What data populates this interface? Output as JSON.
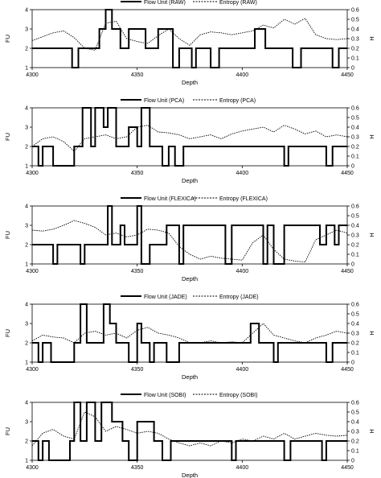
{
  "chart_data": [
    {
      "type": "line",
      "title": "",
      "legend": {
        "position": "top",
        "entries": [
          "Flow Unit (RAW)",
          "Entropy (RAW)"
        ]
      },
      "xlabel": "Depth",
      "ylabel": "FU",
      "y2label": "H",
      "xlim": [
        4300,
        4450
      ],
      "ylim": [
        1,
        4
      ],
      "y2lim": [
        0,
        0.6
      ],
      "xticks": [
        "4300",
        "4350",
        "4400",
        "4450"
      ],
      "yticks": [
        "1",
        "2",
        "3",
        "4"
      ],
      "y2ticks": [
        "0",
        "0.1",
        "0.2",
        "0.3",
        "0.4",
        "0.5",
        "0.6"
      ],
      "grid": false,
      "series": [
        {
          "name": "Flow Unit (RAW)",
          "axis": "left",
          "style": "solid",
          "x": [
            4300,
            4319,
            4319,
            4322,
            4322,
            4332,
            4332,
            4335,
            4335,
            4338,
            4338,
            4342,
            4342,
            4346,
            4346,
            4354,
            4354,
            4360,
            4360,
            4367,
            4367,
            4370,
            4370,
            4376,
            4376,
            4378,
            4378,
            4385,
            4385,
            4389,
            4389,
            4406,
            4406,
            4411,
            4411,
            4424,
            4424,
            4428,
            4428,
            4443,
            4443,
            4446,
            4446,
            4450
          ],
          "y": [
            2,
            2,
            1,
            1,
            2,
            2,
            3,
            3,
            4,
            4,
            3,
            3,
            2,
            2,
            3,
            3,
            2,
            2,
            3,
            3,
            1,
            1,
            2,
            2,
            1,
            1,
            2,
            2,
            1,
            1,
            2,
            2,
            3,
            3,
            2,
            2,
            1,
            1,
            2,
            2,
            1,
            1,
            2,
            2
          ]
        },
        {
          "name": "Entropy (RAW)",
          "axis": "right",
          "style": "dotted",
          "x": [
            4300,
            4305,
            4310,
            4315,
            4320,
            4325,
            4330,
            4335,
            4340,
            4345,
            4350,
            4355,
            4360,
            4365,
            4370,
            4375,
            4380,
            4385,
            4390,
            4395,
            4400,
            4405,
            4410,
            4415,
            4420,
            4425,
            4430,
            4435,
            4440,
            4445,
            4450
          ],
          "y": [
            0.28,
            0.32,
            0.36,
            0.38,
            0.31,
            0.2,
            0.18,
            0.46,
            0.48,
            0.3,
            0.27,
            0.25,
            0.33,
            0.4,
            0.3,
            0.23,
            0.34,
            0.37,
            0.36,
            0.34,
            0.36,
            0.38,
            0.44,
            0.41,
            0.5,
            0.45,
            0.51,
            0.34,
            0.3,
            0.29,
            0.3
          ]
        }
      ]
    },
    {
      "type": "line",
      "title": "",
      "legend": {
        "position": "top",
        "entries": [
          "Flow Unit (PCA)",
          "Entropy (PCA)"
        ]
      },
      "xlabel": "Depth",
      "ylabel": "FU",
      "y2label": "H",
      "xlim": [
        4300,
        4450
      ],
      "ylim": [
        1,
        4
      ],
      "y2lim": [
        0,
        0.6
      ],
      "xticks": [
        "4300",
        "4350",
        "4400",
        "4450"
      ],
      "yticks": [
        "1",
        "2",
        "3",
        "4"
      ],
      "y2ticks": [
        "0",
        "0.1",
        "0.2",
        "0.3",
        "0.4",
        "0.5",
        "0.6"
      ],
      "grid": false,
      "series": [
        {
          "name": "Flow Unit (PCA)",
          "axis": "left",
          "style": "solid",
          "x": [
            4300,
            4303,
            4303,
            4305,
            4305,
            4310,
            4310,
            4320,
            4320,
            4324,
            4324,
            4328,
            4328,
            4330,
            4330,
            4334,
            4334,
            4336,
            4336,
            4340,
            4340,
            4346,
            4346,
            4350,
            4350,
            4352,
            4352,
            4356,
            4356,
            4362,
            4362,
            4365,
            4365,
            4368,
            4368,
            4372,
            4372,
            4420,
            4420,
            4422,
            4422,
            4440,
            4440,
            4443,
            4443,
            4450
          ],
          "y": [
            2,
            2,
            1,
            1,
            2,
            2,
            1,
            1,
            2,
            2,
            4,
            4,
            2,
            2,
            4,
            4,
            3,
            3,
            4,
            4,
            2,
            2,
            3,
            3,
            2,
            2,
            4,
            4,
            2,
            2,
            1,
            1,
            2,
            2,
            1,
            1,
            2,
            2,
            1,
            1,
            2,
            2,
            1,
            1,
            2,
            2
          ]
        },
        {
          "name": "Entropy (PCA)",
          "axis": "right",
          "style": "dotted",
          "x": [
            4300,
            4305,
            4310,
            4315,
            4320,
            4325,
            4330,
            4335,
            4340,
            4345,
            4350,
            4355,
            4360,
            4365,
            4370,
            4375,
            4380,
            4385,
            4390,
            4395,
            4400,
            4405,
            4410,
            4415,
            4420,
            4425,
            4430,
            4435,
            4440,
            4445,
            4450
          ],
          "y": [
            0.2,
            0.28,
            0.3,
            0.25,
            0.15,
            0.28,
            0.3,
            0.32,
            0.28,
            0.3,
            0.4,
            0.42,
            0.35,
            0.34,
            0.32,
            0.28,
            0.3,
            0.32,
            0.28,
            0.33,
            0.36,
            0.38,
            0.4,
            0.35,
            0.42,
            0.38,
            0.33,
            0.36,
            0.3,
            0.32,
            0.3
          ]
        }
      ]
    },
    {
      "type": "line",
      "title": "",
      "legend": {
        "position": "top",
        "entries": [
          "Flow Unit (FLEXICA)",
          "Entropy (FLEXICA)"
        ]
      },
      "xlabel": "Depth",
      "ylabel": "FU",
      "y2label": "H",
      "xlim": [
        4300,
        4450
      ],
      "ylim": [
        1,
        4
      ],
      "y2lim": [
        0,
        0.6
      ],
      "xticks": [
        "4300",
        "4350",
        "4400",
        "4450"
      ],
      "yticks": [
        "1",
        "2",
        "3",
        "4"
      ],
      "y2ticks": [
        "0",
        "0.1",
        "0.2",
        "0.3",
        "0.4",
        "0.5",
        "0.6"
      ],
      "grid": false,
      "series": [
        {
          "name": "Flow Unit (FLEXICA)",
          "axis": "right",
          "style": "solid",
          "x": [
            4300,
            4310,
            4310,
            4312,
            4312,
            4323,
            4323,
            4325,
            4325,
            4336,
            4336,
            4338,
            4338,
            4342,
            4342,
            4344,
            4344,
            4350,
            4350,
            4352,
            4352,
            4356,
            4356,
            4364,
            4364,
            4370,
            4370,
            4372,
            4372,
            4392,
            4392,
            4395,
            4395,
            4410,
            4410,
            4412,
            4412,
            4415,
            4415,
            4420,
            4420,
            4437,
            4437,
            4440,
            4440,
            4444,
            4444,
            4446,
            4446,
            4450
          ],
          "y": [
            0.2,
            0.2,
            0,
            0,
            0.2,
            0.2,
            0,
            0,
            0.2,
            0.2,
            0.6,
            0.6,
            0.2,
            0.2,
            0.4,
            0.4,
            0.2,
            0.2,
            0.6,
            0.6,
            0,
            0,
            0.2,
            0.2,
            0.4,
            0.4,
            0,
            0,
            0.4,
            0.4,
            0,
            0,
            0.4,
            0.4,
            0,
            0,
            0.4,
            0.4,
            0,
            0,
            0.4,
            0.4,
            0.2,
            0.2,
            0.4,
            0.4,
            0.2,
            0.2,
            0.4,
            0.4
          ]
        },
        {
          "name": "Entropy (FLEXICA)",
          "axis": "right",
          "style": "dotted",
          "x": [
            4300,
            4305,
            4310,
            4315,
            4320,
            4325,
            4330,
            4335,
            4340,
            4345,
            4350,
            4355,
            4360,
            4365,
            4370,
            4375,
            4380,
            4385,
            4390,
            4395,
            4400,
            4405,
            4410,
            4415,
            4420,
            4425,
            4430,
            4435,
            4440,
            4445,
            4450
          ],
          "y": [
            0.35,
            0.34,
            0.36,
            0.4,
            0.45,
            0.42,
            0.38,
            0.3,
            0.32,
            0.28,
            0.3,
            0.36,
            0.35,
            0.32,
            0.18,
            0.1,
            0.05,
            0.08,
            0.06,
            0.05,
            0.04,
            0.22,
            0.3,
            0.15,
            0.05,
            0.03,
            0.02,
            0.25,
            0.3,
            0.35,
            0.32
          ]
        }
      ]
    },
    {
      "type": "line",
      "title": "",
      "legend": {
        "position": "top",
        "entries": [
          "Flow Unit (JADE)",
          "Entropy (JADE)"
        ]
      },
      "xlabel": "Depth",
      "ylabel": "FU",
      "y2label": "H",
      "xlim": [
        4300,
        4450
      ],
      "ylim": [
        1,
        4
      ],
      "y2lim": [
        0,
        0.6
      ],
      "xticks": [
        "4300",
        "4350",
        "4400",
        "4450"
      ],
      "yticks": [
        "1",
        "2",
        "3",
        "4"
      ],
      "y2ticks": [
        "0",
        "0.1",
        "0.2",
        "0.3",
        "0.4",
        "0.5",
        "0.6"
      ],
      "grid": false,
      "series": [
        {
          "name": "Flow Unit (JADE)",
          "axis": "left",
          "style": "solid",
          "x": [
            4300,
            4303,
            4303,
            4305,
            4305,
            4309,
            4309,
            4320,
            4320,
            4323,
            4323,
            4326,
            4326,
            4334,
            4334,
            4337,
            4337,
            4340,
            4340,
            4346,
            4346,
            4350,
            4350,
            4352,
            4352,
            4356,
            4356,
            4358,
            4358,
            4364,
            4364,
            4370,
            4370,
            4372,
            4372,
            4404,
            4404,
            4408,
            4408,
            4415,
            4415,
            4417,
            4417,
            4420,
            4420,
            4440,
            4440,
            4443,
            4443,
            4450
          ],
          "y": [
            2,
            2,
            1,
            1,
            2,
            2,
            1,
            1,
            2,
            2,
            4,
            4,
            2,
            2,
            4,
            4,
            3,
            3,
            2,
            2,
            1,
            1,
            3,
            3,
            2,
            2,
            1,
            1,
            2,
            2,
            1,
            1,
            2,
            2,
            2,
            2,
            3,
            3,
            2,
            2,
            1,
            1,
            2,
            2,
            2,
            2,
            1,
            1,
            2,
            2
          ]
        },
        {
          "name": "Entropy (JADE)",
          "axis": "right",
          "style": "dotted",
          "x": [
            4300,
            4305,
            4310,
            4315,
            4320,
            4325,
            4330,
            4335,
            4340,
            4345,
            4350,
            4355,
            4360,
            4365,
            4370,
            4375,
            4380,
            4385,
            4390,
            4395,
            4400,
            4405,
            4410,
            4415,
            4420,
            4425,
            4430,
            4435,
            4440,
            4445,
            4450
          ],
          "y": [
            0.22,
            0.28,
            0.26,
            0.25,
            0.2,
            0.3,
            0.32,
            0.28,
            0.3,
            0.25,
            0.33,
            0.36,
            0.3,
            0.28,
            0.25,
            0.2,
            0.2,
            0.22,
            0.2,
            0.21,
            0.2,
            0.3,
            0.4,
            0.28,
            0.25,
            0.22,
            0.2,
            0.25,
            0.28,
            0.32,
            0.3
          ]
        }
      ]
    },
    {
      "type": "line",
      "title": "",
      "legend": {
        "position": "top",
        "entries": [
          "Flow Unit (SOBI)",
          "Entropy (SOBI)"
        ]
      },
      "xlabel": "Depth",
      "ylabel": "FU",
      "y2label": "H",
      "xlim": [
        4300,
        4450
      ],
      "ylim": [
        1,
        4
      ],
      "y2lim": [
        0,
        0.6
      ],
      "xticks": [
        "4300",
        "4350",
        "4400",
        "4450"
      ],
      "yticks": [
        "1",
        "2",
        "3",
        "4"
      ],
      "y2ticks": [
        "0",
        "0.1",
        "0.2",
        "0.3",
        "0.4",
        "0.5",
        "0.6"
      ],
      "grid": false,
      "series": [
        {
          "name": "Flow Unit (SOBI)",
          "axis": "left",
          "style": "solid",
          "x": [
            4300,
            4303,
            4303,
            4305,
            4305,
            4308,
            4308,
            4318,
            4318,
            4320,
            4320,
            4323,
            4323,
            4326,
            4326,
            4330,
            4330,
            4333,
            4333,
            4338,
            4338,
            4343,
            4343,
            4346,
            4346,
            4350,
            4350,
            4353,
            4353,
            4358,
            4358,
            4362,
            4362,
            4366,
            4366,
            4370,
            4370,
            4395,
            4395,
            4397,
            4397,
            4420,
            4420,
            4423,
            4423,
            4438,
            4438,
            4440,
            4440,
            4450
          ],
          "y": [
            2,
            2,
            1,
            1,
            2,
            2,
            1,
            1,
            2,
            2,
            4,
            4,
            2,
            2,
            4,
            4,
            2,
            2,
            4,
            4,
            3,
            3,
            2,
            2,
            1,
            1,
            3,
            3,
            3,
            3,
            2,
            2,
            1,
            1,
            2,
            2,
            2,
            2,
            1,
            1,
            2,
            2,
            1,
            1,
            2,
            2,
            1,
            1,
            2,
            2
          ]
        },
        {
          "name": "Entropy (SOBI)",
          "axis": "right",
          "style": "dotted",
          "x": [
            4300,
            4305,
            4310,
            4315,
            4320,
            4325,
            4330,
            4335,
            4340,
            4345,
            4350,
            4355,
            4360,
            4365,
            4370,
            4375,
            4380,
            4385,
            4390,
            4395,
            4400,
            4405,
            4410,
            4415,
            4420,
            4425,
            4430,
            4435,
            4440,
            4445,
            4450
          ],
          "y": [
            0.15,
            0.28,
            0.32,
            0.25,
            0.22,
            0.5,
            0.45,
            0.3,
            0.35,
            0.32,
            0.28,
            0.3,
            0.28,
            0.22,
            0.18,
            0.15,
            0.18,
            0.15,
            0.2,
            0.18,
            0.22,
            0.2,
            0.25,
            0.22,
            0.28,
            0.22,
            0.25,
            0.28,
            0.26,
            0.25,
            0.26
          ]
        }
      ]
    }
  ]
}
